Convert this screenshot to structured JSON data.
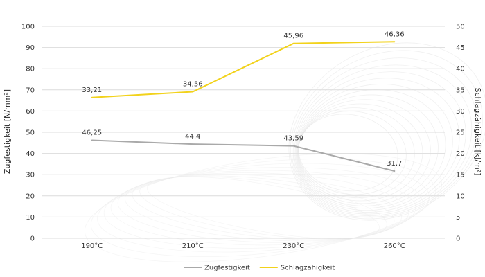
{
  "chart_data": {
    "type": "line",
    "categories": [
      "190°C",
      "210°C",
      "230°C",
      "260°C"
    ],
    "series": [
      {
        "name": "Zugfestigkeit",
        "axis": "left",
        "color": "#a9a9a9",
        "values": [
          46.25,
          44.4,
          43.59,
          31.7
        ],
        "labels": [
          "46,25",
          "44,4",
          "43,59",
          "31,7"
        ]
      },
      {
        "name": "Schlagzähigkeit",
        "axis": "right",
        "color": "#f2d21b",
        "values": [
          33.21,
          34.56,
          45.96,
          46.36
        ],
        "labels": [
          "33,21",
          "34,56",
          "45,96",
          "46,36"
        ]
      }
    ],
    "ylabel_left": "Zugfestigkeit [N/mm²]",
    "ylabel_right": "Schlagzähigkeit [kJ/m²]",
    "ylim_left": [
      0,
      100
    ],
    "ylim_right": [
      0,
      50
    ],
    "yticks_left": [
      "0",
      "10",
      "20",
      "30",
      "40",
      "50",
      "60",
      "70",
      "80",
      "90",
      "100"
    ],
    "yticks_right": [
      "0",
      "5",
      "10",
      "15",
      "20",
      "25",
      "30",
      "35",
      "40",
      "45",
      "50"
    ],
    "grid": true,
    "legend_position": "bottom"
  }
}
